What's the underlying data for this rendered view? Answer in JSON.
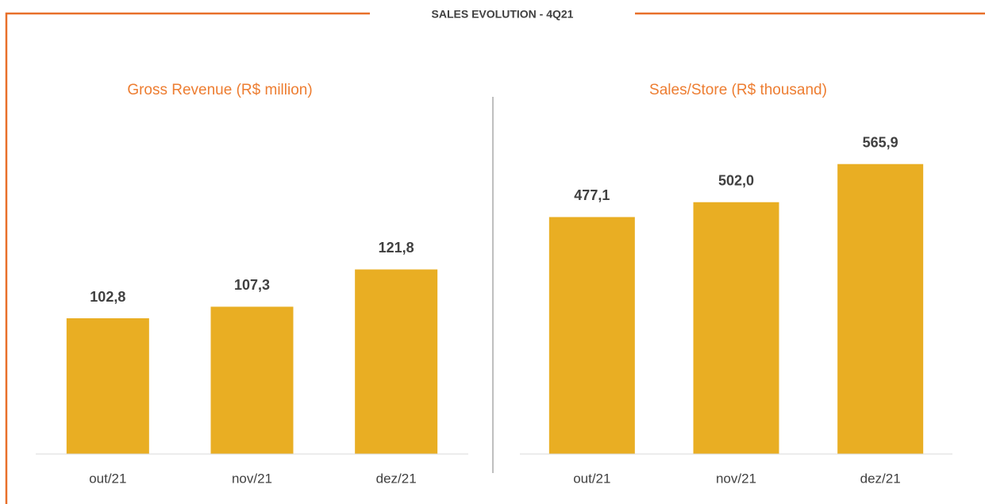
{
  "page_title": "SALES EVOLUTION - 4Q21",
  "chart_data": [
    {
      "type": "bar",
      "title": "Gross Revenue (R$ million)",
      "categories": [
        "out/21",
        "nov/21",
        "dez/21"
      ],
      "values": [
        102.8,
        107.3,
        121.8
      ],
      "value_labels": [
        "102,8",
        "107,3",
        "121,8"
      ],
      "color": "#e9ae23",
      "ylim": [
        50,
        180
      ]
    },
    {
      "type": "bar",
      "title": "Sales/Store (R$ thousand)",
      "categories": [
        "out/21",
        "nov/21",
        "dez/21"
      ],
      "values": [
        477.1,
        502.0,
        565.9
      ],
      "value_labels": [
        "477,1",
        "502,0",
        "565,9"
      ],
      "color": "#e9ae23",
      "ylim": [
        80,
        640
      ]
    }
  ]
}
